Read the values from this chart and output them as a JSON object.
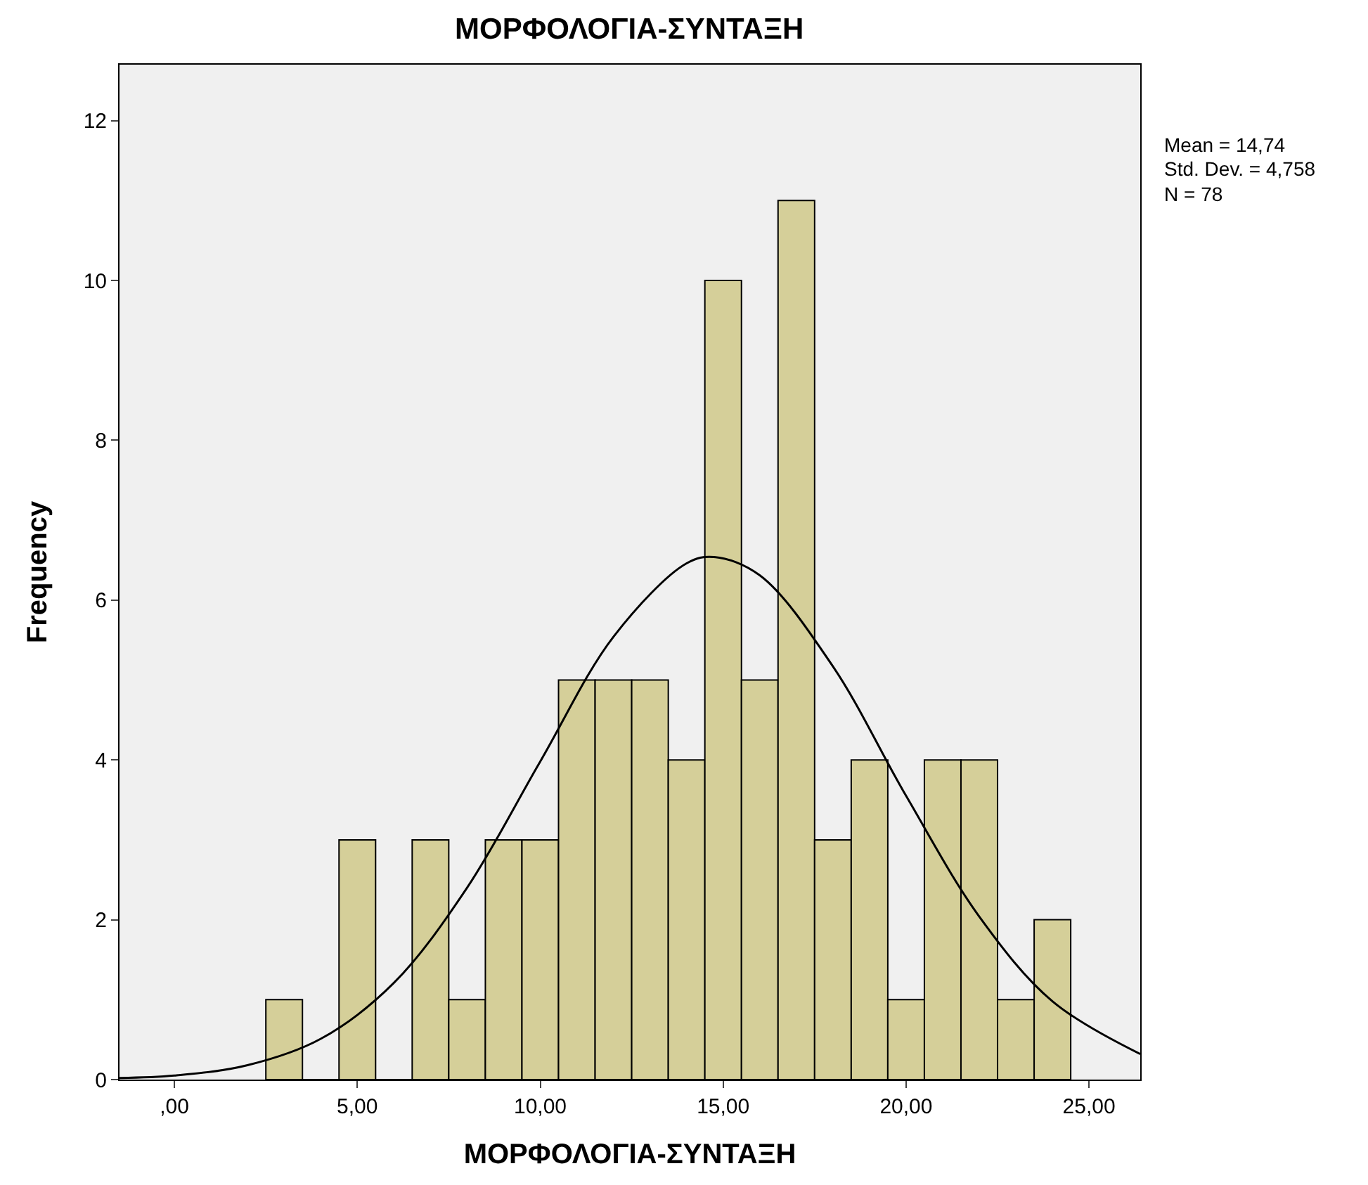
{
  "chart_data": {
    "type": "histogram",
    "title": "ΜΟΡΦΟΛΟΓΙΑ-ΣΥΝΤΑΞΗ",
    "xlabel": "ΜΟΡΦΟΛΟΓΙΑ-ΣΥΝΤΑΞΗ",
    "ylabel": "Frequency",
    "annotations": [
      "Mean = 14,74",
      "Std. Dev. = 4,758",
      "N = 78"
    ],
    "bins": [
      2.5,
      3.5,
      4.5,
      5.5,
      6.5,
      7.5,
      8.5,
      9.5,
      10.5,
      11.5,
      12.5,
      13.5,
      14.5,
      15.5,
      16.5,
      17.5,
      18.5,
      19.5,
      20.5,
      21.5,
      22.5,
      23.5,
      24.5
    ],
    "series": [
      {
        "color": "#d5cf99",
        "values": [
          1,
          0,
          3,
          0,
          3,
          1,
          3,
          3,
          5,
          5,
          5,
          4,
          10,
          5,
          11,
          3,
          4,
          1,
          4,
          4,
          1,
          2
        ]
      },
      {
        "type": "line",
        "color": "#000000",
        "x": [
          -1.5,
          0,
          2,
          4,
          6,
          8,
          10,
          12,
          14,
          14.74,
          16,
          18,
          20,
          22,
          24,
          26.4
        ],
        "values": [
          0.02,
          0.05,
          0.18,
          0.51,
          1.21,
          2.4,
          3.98,
          5.54,
          6.46,
          6.54,
          6.31,
          5.17,
          3.55,
          2.04,
          0.98,
          0.32
        ]
      }
    ],
    "xlim": [
      -1.5,
      26.4
    ],
    "xticks": [
      {
        "value": 0,
        "label": ",00"
      },
      {
        "value": 5,
        "label": "5,00"
      },
      {
        "value": 10,
        "label": "10,00"
      },
      {
        "value": 15,
        "label": "15,00"
      },
      {
        "value": 20,
        "label": "20,00"
      },
      {
        "value": 25,
        "label": "25,00"
      }
    ],
    "ylim": [
      0,
      12.7
    ],
    "yticks": [
      0,
      2,
      4,
      6,
      8,
      10,
      12
    ],
    "grid": false,
    "legend": false
  }
}
